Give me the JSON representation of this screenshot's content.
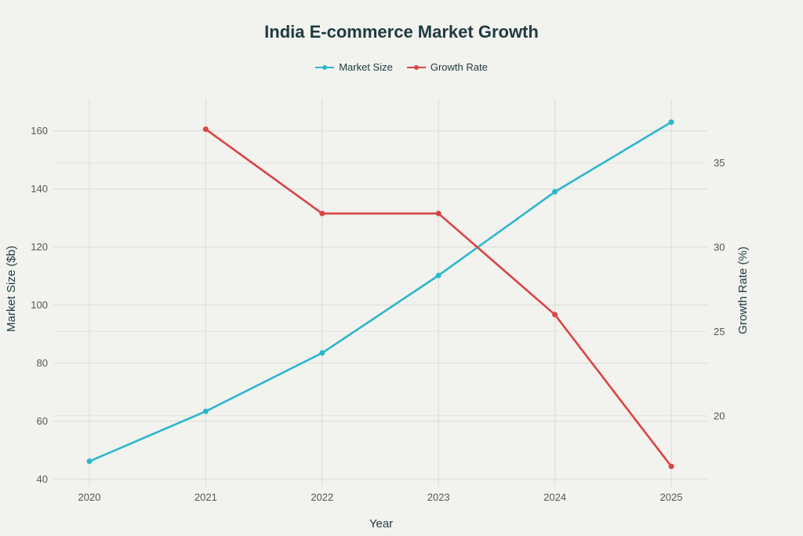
{
  "chart_data": {
    "type": "line",
    "title": "India E-commerce Market Growth",
    "xlabel": "Year",
    "ylabel_left": "Market Size ($b)",
    "ylabel_right": "Growth Rate (%)",
    "x": [
      "2020",
      "2021",
      "2022",
      "2023",
      "2024",
      "2025"
    ],
    "y_left_range": [
      37.5,
      171
    ],
    "y_left_ticks": [
      40,
      60,
      80,
      100,
      120,
      140,
      160
    ],
    "y_right_range": [
      15.8,
      38.8
    ],
    "y_right_ticks": [
      20,
      25,
      30,
      35
    ],
    "grid": true,
    "legend_position": "top-center",
    "series": [
      {
        "name": "Market Size",
        "axis": "left",
        "color": "#2bb7cc",
        "values": [
          46.2,
          63.4,
          83.5,
          110.2,
          139.0,
          163.0
        ]
      },
      {
        "name": "Growth Rate",
        "axis": "right",
        "color": "#d94545",
        "values": [
          null,
          37,
          32,
          32,
          26,
          17
        ]
      }
    ]
  }
}
